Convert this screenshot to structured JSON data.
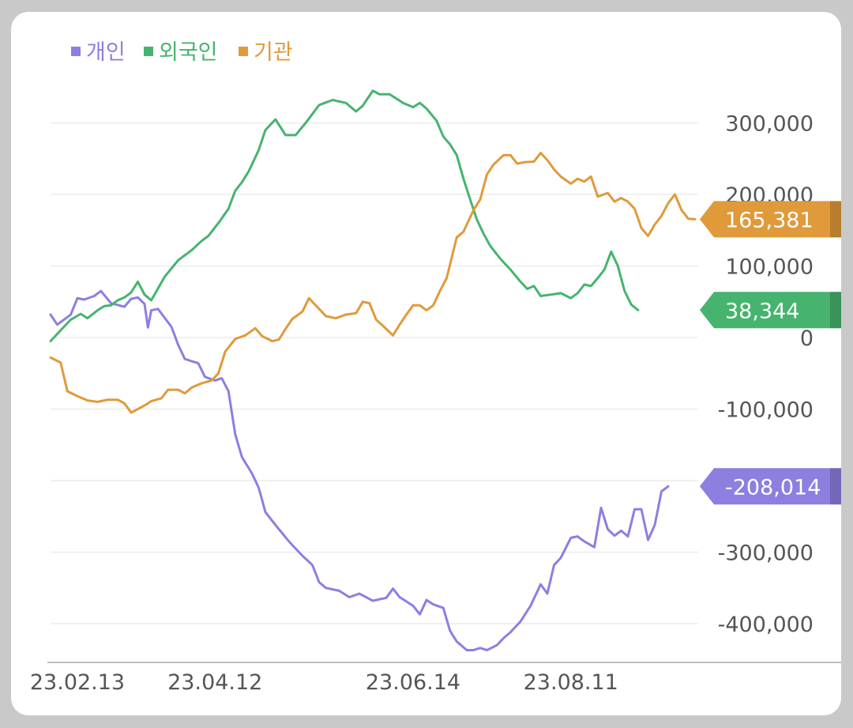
{
  "chart_data": {
    "type": "line",
    "title": "",
    "xlabel": "",
    "ylabel": "",
    "ylim": [
      -460000,
      350000
    ],
    "yticks": [
      300000,
      200000,
      100000,
      0,
      -100000,
      -200000,
      -300000,
      -400000
    ],
    "ytick_labels": [
      "300,000",
      "200,000",
      "100,000",
      "0",
      "-100,000",
      "-200,000",
      "-300,000",
      "-400,000"
    ],
    "xtick_labels": [
      "23.02.13",
      "23.04.12",
      "23.06.14",
      "23.08.11"
    ],
    "xtick_index": [
      8,
      49,
      108,
      155
    ],
    "n_points": 180,
    "grid": true,
    "legend_position": "top-left",
    "series": [
      {
        "name": "개인",
        "color": "#8c7fe0",
        "end_label": "-208,014",
        "keypoints": [
          [
            0,
            32000
          ],
          [
            2,
            18000
          ],
          [
            6,
            32000
          ],
          [
            8,
            55000
          ],
          [
            10,
            53000
          ],
          [
            13,
            58000
          ],
          [
            15,
            65000
          ],
          [
            18,
            48000
          ],
          [
            22,
            43000
          ],
          [
            24,
            54000
          ],
          [
            26,
            56000
          ],
          [
            28,
            47000
          ],
          [
            29,
            14000
          ],
          [
            30,
            38000
          ],
          [
            32,
            40000
          ],
          [
            36,
            15000
          ],
          [
            38,
            -10000
          ],
          [
            40,
            -30000
          ],
          [
            44,
            -36000
          ],
          [
            46,
            -55000
          ],
          [
            49,
            -60000
          ],
          [
            51,
            -57000
          ],
          [
            53,
            -75000
          ],
          [
            55,
            -135000
          ],
          [
            57,
            -167000
          ],
          [
            60,
            -190000
          ],
          [
            62,
            -210000
          ],
          [
            64,
            -244000
          ],
          [
            67,
            -262000
          ],
          [
            71,
            -285000
          ],
          [
            75,
            -305000
          ],
          [
            78,
            -318000
          ],
          [
            80,
            -342000
          ],
          [
            82,
            -350000
          ],
          [
            86,
            -354000
          ],
          [
            89,
            -363000
          ],
          [
            92,
            -358000
          ],
          [
            96,
            -368000
          ],
          [
            100,
            -364000
          ],
          [
            102,
            -351000
          ],
          [
            104,
            -363000
          ],
          [
            108,
            -375000
          ],
          [
            110,
            -387000
          ],
          [
            112,
            -367000
          ],
          [
            114,
            -373000
          ],
          [
            117,
            -378000
          ],
          [
            119,
            -410000
          ],
          [
            121,
            -425000
          ],
          [
            124,
            -437000
          ],
          [
            126,
            -437000
          ],
          [
            128,
            -434000
          ],
          [
            130,
            -437000
          ],
          [
            133,
            -430000
          ],
          [
            135,
            -420000
          ],
          [
            137,
            -412000
          ],
          [
            140,
            -397000
          ],
          [
            143,
            -375000
          ],
          [
            146,
            -345000
          ],
          [
            148,
            -358000
          ],
          [
            150,
            -318000
          ],
          [
            152,
            -308000
          ],
          [
            155,
            -280000
          ],
          [
            157,
            -278000
          ],
          [
            159,
            -285000
          ],
          [
            162,
            -293000
          ],
          [
            164,
            -238000
          ],
          [
            166,
            -268000
          ],
          [
            168,
            -277000
          ],
          [
            170,
            -270000
          ],
          [
            172,
            -278000
          ],
          [
            174,
            -240000
          ],
          [
            176,
            -240000
          ],
          [
            178,
            -283000
          ],
          [
            180,
            -262000
          ],
          [
            182,
            -215000
          ],
          [
            184,
            -208014
          ]
        ]
      },
      {
        "name": "외국인",
        "color": "#46b46e",
        "end_label": "38,344",
        "keypoints": [
          [
            0,
            -5000
          ],
          [
            3,
            10000
          ],
          [
            6,
            25000
          ],
          [
            9,
            33000
          ],
          [
            11,
            27000
          ],
          [
            14,
            38000
          ],
          [
            16,
            44000
          ],
          [
            18,
            45000
          ],
          [
            20,
            52000
          ],
          [
            22,
            56000
          ],
          [
            24,
            63000
          ],
          [
            26,
            78000
          ],
          [
            28,
            60000
          ],
          [
            30,
            52000
          ],
          [
            34,
            85000
          ],
          [
            38,
            108000
          ],
          [
            42,
            122000
          ],
          [
            45,
            135000
          ],
          [
            47,
            142000
          ],
          [
            50,
            160000
          ],
          [
            53,
            180000
          ],
          [
            55,
            205000
          ],
          [
            57,
            217000
          ],
          [
            59,
            232000
          ],
          [
            62,
            262000
          ],
          [
            64,
            290000
          ],
          [
            67,
            305000
          ],
          [
            70,
            283000
          ],
          [
            73,
            283000
          ],
          [
            76,
            300000
          ],
          [
            80,
            325000
          ],
          [
            84,
            332000
          ],
          [
            88,
            328000
          ],
          [
            91,
            316000
          ],
          [
            93,
            324000
          ],
          [
            96,
            345000
          ],
          [
            98,
            340000
          ],
          [
            101,
            340000
          ],
          [
            105,
            328000
          ],
          [
            108,
            322000
          ],
          [
            110,
            328000
          ],
          [
            112,
            320000
          ],
          [
            115,
            303000
          ],
          [
            117,
            281000
          ],
          [
            119,
            270000
          ],
          [
            121,
            255000
          ],
          [
            123,
            222000
          ],
          [
            125,
            193000
          ],
          [
            127,
            165000
          ],
          [
            129,
            145000
          ],
          [
            131,
            128000
          ],
          [
            134,
            110000
          ],
          [
            137,
            95000
          ],
          [
            140,
            78000
          ],
          [
            142,
            68000
          ],
          [
            144,
            72000
          ],
          [
            146,
            58000
          ],
          [
            149,
            60000
          ],
          [
            152,
            62000
          ],
          [
            155,
            55000
          ],
          [
            157,
            62000
          ],
          [
            159,
            74000
          ],
          [
            161,
            72000
          ],
          [
            163,
            83000
          ],
          [
            165,
            95000
          ],
          [
            167,
            120000
          ],
          [
            169,
            100000
          ],
          [
            171,
            65000
          ],
          [
            173,
            46000
          ],
          [
            175,
            38344
          ]
        ]
      },
      {
        "name": "기관",
        "color": "#e09a3a",
        "end_label": "165,381",
        "keypoints": [
          [
            0,
            -28000
          ],
          [
            3,
            -35000
          ],
          [
            5,
            -75000
          ],
          [
            8,
            -82000
          ],
          [
            11,
            -88000
          ],
          [
            14,
            -90000
          ],
          [
            17,
            -87000
          ],
          [
            20,
            -87000
          ],
          [
            22,
            -92000
          ],
          [
            24,
            -105000
          ],
          [
            26,
            -100000
          ],
          [
            28,
            -95000
          ],
          [
            30,
            -89000
          ],
          [
            33,
            -85000
          ],
          [
            35,
            -73000
          ],
          [
            38,
            -73000
          ],
          [
            40,
            -78000
          ],
          [
            42,
            -70000
          ],
          [
            45,
            -64000
          ],
          [
            48,
            -60000
          ],
          [
            50,
            -50000
          ],
          [
            52,
            -20000
          ],
          [
            55,
            -2000
          ],
          [
            58,
            3000
          ],
          [
            61,
            13000
          ],
          [
            63,
            2000
          ],
          [
            66,
            -5000
          ],
          [
            68,
            -3000
          ],
          [
            70,
            12000
          ],
          [
            72,
            26000
          ],
          [
            75,
            36000
          ],
          [
            77,
            55000
          ],
          [
            79,
            45000
          ],
          [
            82,
            30000
          ],
          [
            85,
            27000
          ],
          [
            88,
            32000
          ],
          [
            91,
            34000
          ],
          [
            93,
            50000
          ],
          [
            95,
            48000
          ],
          [
            97,
            25000
          ],
          [
            100,
            12000
          ],
          [
            102,
            3000
          ],
          [
            104,
            18000
          ],
          [
            106,
            32000
          ],
          [
            108,
            45000
          ],
          [
            110,
            45000
          ],
          [
            112,
            38000
          ],
          [
            114,
            45000
          ],
          [
            116,
            65000
          ],
          [
            118,
            83000
          ],
          [
            121,
            140000
          ],
          [
            123,
            148000
          ],
          [
            126,
            178000
          ],
          [
            128,
            193000
          ],
          [
            130,
            228000
          ],
          [
            132,
            242000
          ],
          [
            135,
            255000
          ],
          [
            137,
            255000
          ],
          [
            139,
            243000
          ],
          [
            141,
            245000
          ],
          [
            144,
            246000
          ],
          [
            146,
            258000
          ],
          [
            148,
            248000
          ],
          [
            150,
            235000
          ],
          [
            152,
            225000
          ],
          [
            155,
            215000
          ],
          [
            157,
            222000
          ],
          [
            159,
            218000
          ],
          [
            161,
            225000
          ],
          [
            163,
            197000
          ],
          [
            166,
            202000
          ],
          [
            168,
            190000
          ],
          [
            170,
            195000
          ],
          [
            172,
            190000
          ],
          [
            174,
            180000
          ],
          [
            176,
            153000
          ],
          [
            178,
            142000
          ],
          [
            180,
            158000
          ],
          [
            182,
            170000
          ],
          [
            184,
            188000
          ],
          [
            186,
            200000
          ],
          [
            188,
            178000
          ],
          [
            190,
            166000
          ],
          [
            192,
            165381
          ]
        ]
      }
    ]
  }
}
